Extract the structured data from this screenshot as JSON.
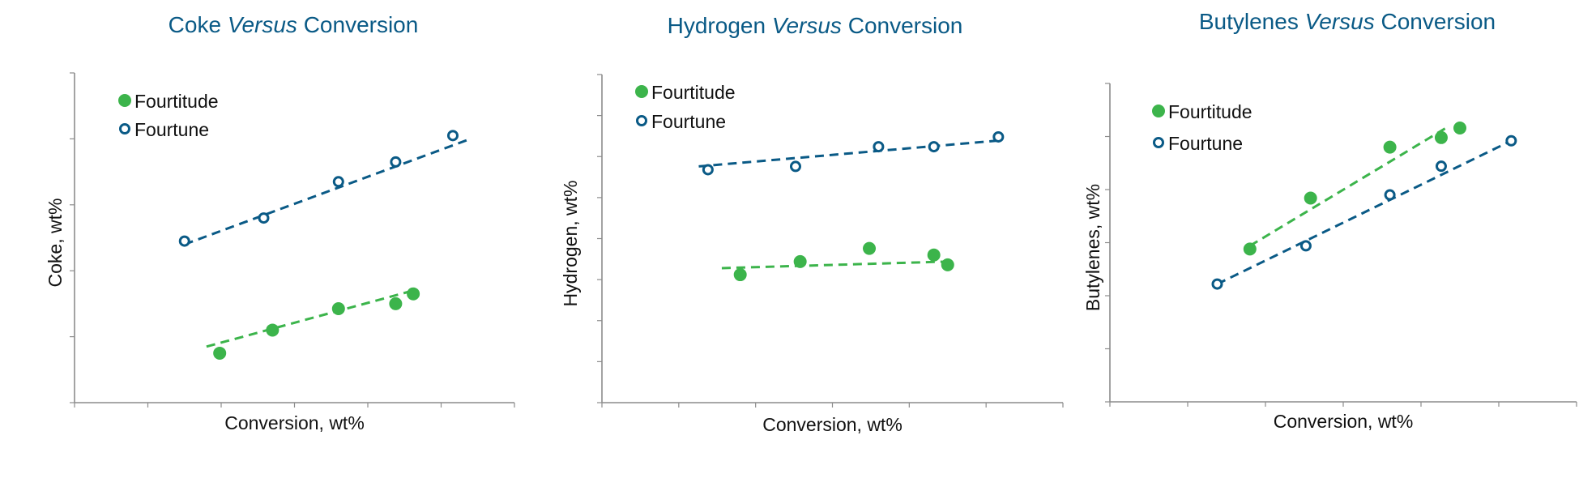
{
  "colors": {
    "fourtitude": "#3cb44b",
    "fourtune": "#0a5a86",
    "title": "#0a5a86"
  },
  "chart_data": [
    {
      "type": "scatter",
      "title_parts": [
        "Coke ",
        "Versus",
        " Conversion"
      ],
      "xlabel": "Conversion, wt%",
      "ylabel": "Coke, wt%",
      "xlim": [
        0,
        10
      ],
      "ylim": [
        0,
        10
      ],
      "x_tick_count": 6,
      "y_tick_count": 5,
      "legend": "top-left",
      "series": [
        {
          "name": "Fourtitude",
          "marker": "filled-circle",
          "points": [
            [
              3.3,
              1.5
            ],
            [
              4.5,
              2.2
            ],
            [
              6.0,
              2.85
            ],
            [
              7.3,
              3.0
            ],
            [
              7.7,
              3.3
            ]
          ],
          "trend": [
            [
              3.0,
              1.7
            ],
            [
              7.7,
              3.4
            ]
          ]
        },
        {
          "name": "Fourtune",
          "marker": "open-circle",
          "points": [
            [
              2.5,
              4.9
            ],
            [
              4.3,
              5.6
            ],
            [
              6.0,
              6.7
            ],
            [
              7.3,
              7.3
            ],
            [
              8.6,
              8.1
            ]
          ],
          "trend": [
            [
              2.5,
              4.8
            ],
            [
              9.0,
              8.0
            ]
          ]
        }
      ]
    },
    {
      "type": "scatter",
      "title_parts": [
        "Hydrogen ",
        "Versus",
        " Conversion"
      ],
      "xlabel": "Conversion, wt%",
      "ylabel": "Hydrogen, wt%",
      "xlim": [
        0,
        10
      ],
      "ylim": [
        0,
        10
      ],
      "x_tick_count": 6,
      "y_tick_count": 8,
      "legend": "top-left",
      "series": [
        {
          "name": "Fourtitude",
          "marker": "filled-circle",
          "points": [
            [
              3.0,
              3.9
            ],
            [
              4.3,
              4.3
            ],
            [
              5.8,
              4.7
            ],
            [
              7.2,
              4.5
            ],
            [
              7.5,
              4.2
            ]
          ],
          "trend": [
            [
              2.6,
              4.1
            ],
            [
              7.5,
              4.3
            ]
          ]
        },
        {
          "name": "Fourtune",
          "marker": "open-circle",
          "points": [
            [
              2.3,
              7.1
            ],
            [
              4.2,
              7.2
            ],
            [
              6.0,
              7.8
            ],
            [
              7.2,
              7.8
            ],
            [
              8.6,
              8.1
            ]
          ],
          "trend": [
            [
              2.1,
              7.2
            ],
            [
              8.7,
              8.0
            ]
          ]
        }
      ]
    },
    {
      "type": "scatter",
      "title_parts": [
        "Butylenes ",
        "Versus",
        " Conversion"
      ],
      "xlabel": "Conversion, wt%",
      "ylabel": "Butylenes, wt%",
      "xlim": [
        0,
        10
      ],
      "ylim": [
        0,
        10
      ],
      "x_tick_count": 6,
      "y_tick_count": 6,
      "legend": "top-left",
      "series": [
        {
          "name": "Fourtitude",
          "marker": "filled-circle",
          "points": [
            [
              3.0,
              4.8
            ],
            [
              4.3,
              6.4
            ],
            [
              6.0,
              8.0
            ],
            [
              7.1,
              8.3
            ],
            [
              7.5,
              8.6
            ]
          ],
          "trend": [
            [
              3.0,
              4.9
            ],
            [
              7.2,
              8.6
            ]
          ]
        },
        {
          "name": "Fourtune",
          "marker": "open-circle",
          "points": [
            [
              2.3,
              3.7
            ],
            [
              4.2,
              4.9
            ],
            [
              6.0,
              6.5
            ],
            [
              7.1,
              7.4
            ],
            [
              8.6,
              8.2
            ]
          ],
          "trend": [
            [
              2.3,
              3.7
            ],
            [
              8.6,
              8.2
            ]
          ]
        }
      ]
    }
  ]
}
